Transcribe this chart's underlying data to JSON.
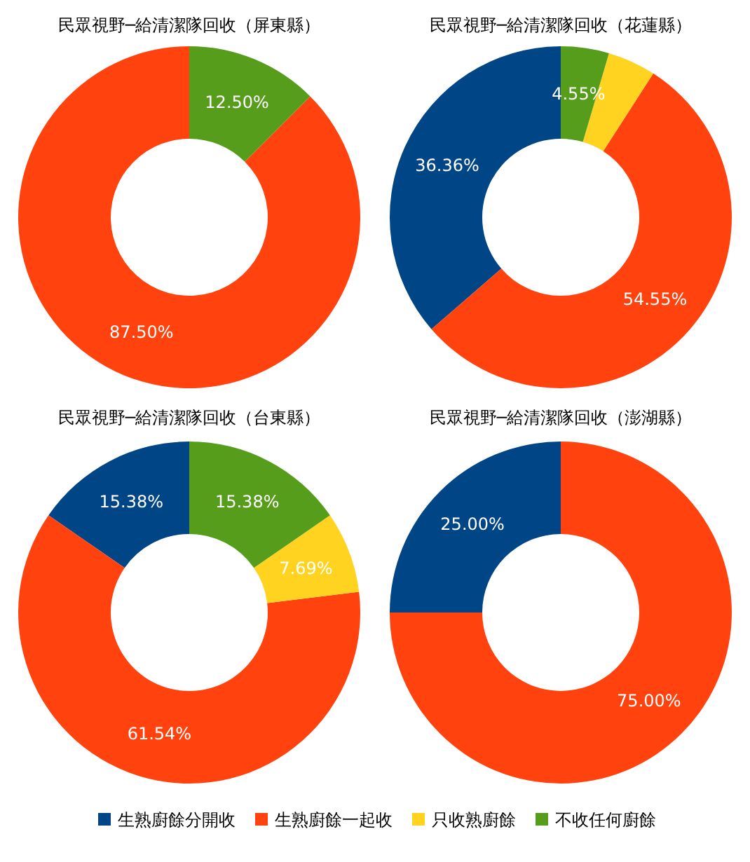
{
  "chart_data": [
    {
      "type": "donut",
      "title": "民眾視野─給清潔隊回收（屏東縣）",
      "categories": [
        "生熟廚餘分開收",
        "生熟廚餘一起收",
        "只收熟廚餘",
        "不收任何廚餘"
      ],
      "colors": [
        "#004586",
        "#ff420e",
        "#ffd320",
        "#579d1c"
      ],
      "values": [
        0,
        87.5,
        0,
        12.5
      ],
      "value_labels": [
        null,
        "87.50%",
        null,
        "12.50%"
      ],
      "legend": "bottom"
    },
    {
      "type": "donut",
      "title": "民眾視野─給清潔隊回收（花蓮縣）",
      "categories": [
        null,
        null,
        null,
        null
      ],
      "colors": [
        "#004586",
        "#ff420e",
        "#ffd320",
        "#579d1c"
      ],
      "values": [
        36.36,
        54.55,
        4.55,
        4.55
      ],
      "value_labels": [
        "36.36%",
        "54.55%",
        null,
        "4.55%"
      ],
      "legend": false
    },
    {
      "type": "donut",
      "title": "民眾視野─給清潔隊回收（台東縣）",
      "categories": [
        null,
        null,
        null,
        null
      ],
      "colors": [
        "#004586",
        "#ff420e",
        "#ffd320",
        "#579d1c"
      ],
      "values": [
        15.38,
        61.54,
        7.69,
        15.38
      ],
      "value_labels": [
        "15.38%",
        "61.54%",
        "7.69%",
        "15.38%"
      ],
      "legend": false
    },
    {
      "type": "donut",
      "title": "民眾視野─給清潔隊回收（澎湖縣）",
      "categories": [
        null,
        null,
        null,
        null
      ],
      "colors": [
        "#004586",
        "#ff420e",
        "#ffd320",
        "#579d1c"
      ],
      "values": [
        25.0,
        75.0,
        0,
        0
      ],
      "value_labels": [
        "25.00%",
        "75.00%",
        null,
        null
      ],
      "legend": false
    }
  ]
}
